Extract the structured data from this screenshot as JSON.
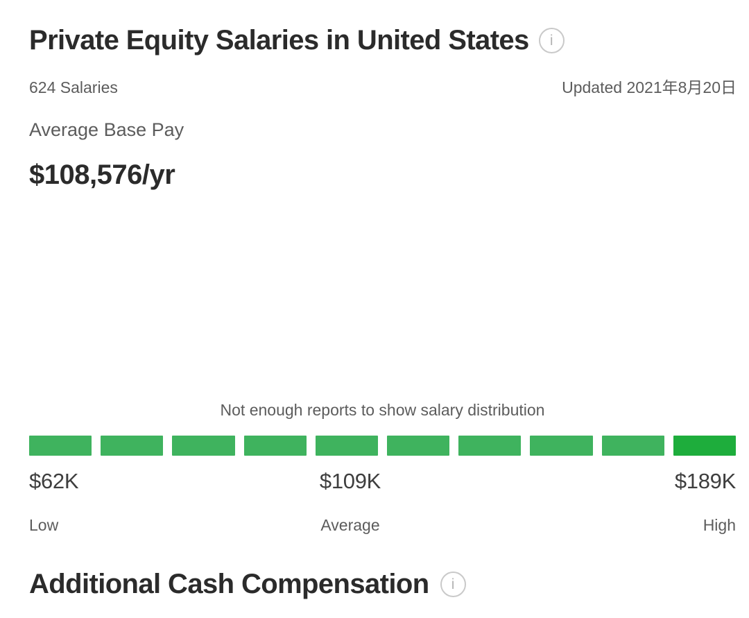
{
  "header": {
    "title": "Private Equity Salaries in United States",
    "salaries_count": "624 Salaries",
    "updated": "Updated 2021年8月20日"
  },
  "average_base_pay": {
    "label": "Average Base Pay",
    "value": "$108,576/yr"
  },
  "distribution": {
    "note": "Not enough reports to show salary distribution",
    "segments": 10,
    "low": {
      "value": "$62K",
      "label": "Low"
    },
    "average": {
      "value": "$109K",
      "label": "Average"
    },
    "high": {
      "value": "$189K",
      "label": "High"
    }
  },
  "additional_section": {
    "title": "Additional Cash Compensation"
  },
  "icons": {
    "info": "i"
  },
  "colors": {
    "segment_green": "#3fb35e",
    "segment_green_dark": "#1ead3c",
    "heading_text": "#2b2b2b",
    "muted_text": "#5c5c5c"
  }
}
